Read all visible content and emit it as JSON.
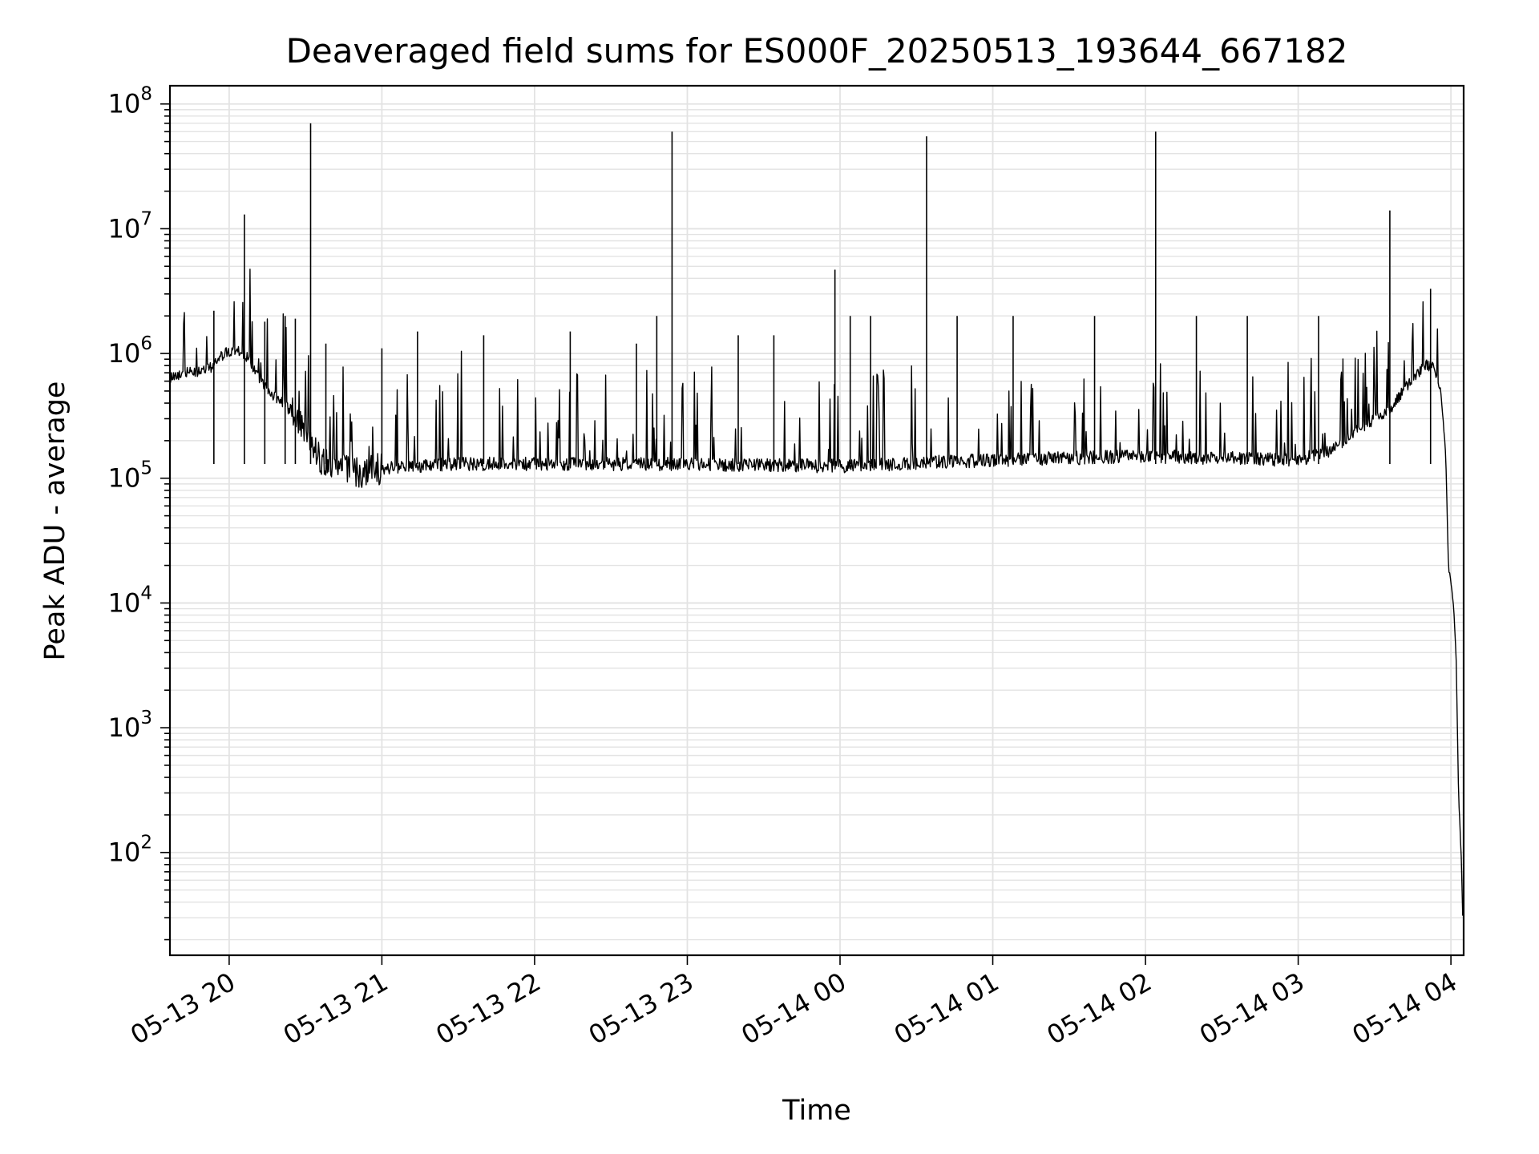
{
  "chart_data": {
    "type": "line",
    "title": "Deaveraged field sums for ES000F_20250513_193644_667182",
    "xlabel": "Time",
    "ylabel": "Peak ADU - average",
    "yscale": "log",
    "ylim": [
      15,
      140000000
    ],
    "xlim": [
      "2025-05-13 19:36:44",
      "2025-05-14 04:05:00"
    ],
    "x_ticks": [
      "05-13 20",
      "05-13 21",
      "05-13 22",
      "05-13 23",
      "05-14 00",
      "05-14 01",
      "05-14 02",
      "05-14 03",
      "05-14 04"
    ],
    "x_tick_times": [
      "2025-05-13 20:00",
      "2025-05-13 21:00",
      "2025-05-13 22:00",
      "2025-05-13 23:00",
      "2025-05-14 00:00",
      "2025-05-14 01:00",
      "2025-05-14 02:00",
      "2025-05-14 03:00",
      "2025-05-14 04:00"
    ],
    "y_ticks": [
      {
        "value": 100,
        "base": "10",
        "exp": "2"
      },
      {
        "value": 1000,
        "base": "10",
        "exp": "3"
      },
      {
        "value": 10000,
        "base": "10",
        "exp": "4"
      },
      {
        "value": 100000,
        "base": "10",
        "exp": "5"
      },
      {
        "value": 1000000,
        "base": "10",
        "exp": "6"
      },
      {
        "value": 10000000,
        "base": "10",
        "exp": "7"
      },
      {
        "value": 100000000,
        "base": "10",
        "exp": "8"
      }
    ],
    "grid": true,
    "line_color": "#000000",
    "series": [
      {
        "x": [
          "2025-05-13 19:36:44",
          "2025-05-13 19:42",
          "2025-05-13 19:48",
          "2025-05-13 19:54",
          "2025-05-13 19:58",
          "2025-05-13 20:03",
          "2025-05-13 20:07",
          "2025-05-13 20:12",
          "2025-05-13 20:18",
          "2025-05-13 20:24",
          "2025-05-13 20:30",
          "2025-05-13 20:36",
          "2025-05-13 20:42",
          "2025-05-13 20:50",
          "2025-05-13 21:00",
          "2025-05-13 21:30",
          "2025-05-13 22:00",
          "2025-05-13 23:00",
          "2025-05-14 00:00",
          "2025-05-14 01:00",
          "2025-05-14 02:00",
          "2025-05-14 03:00",
          "2025-05-14 03:12",
          "2025-05-14 03:24",
          "2025-05-14 03:36",
          "2025-05-14 03:44",
          "2025-05-14 03:50",
          "2025-05-14 03:53",
          "2025-05-14 03:56",
          "2025-05-14 03:58",
          "2025-05-14 03:59",
          "2025-05-14 04:01",
          "2025-05-14 04:02",
          "2025-05-14 04:03",
          "2025-05-14 04:04",
          "2025-05-14 04:04:40"
        ],
        "y": [
          650000,
          700000,
          700000,
          800000,
          1000000,
          1050000,
          950000,
          600000,
          450000,
          350000,
          250000,
          140000,
          120000,
          110000,
          120000,
          130000,
          130000,
          130000,
          125000,
          140000,
          150000,
          140000,
          160000,
          250000,
          350000,
          600000,
          800000,
          800000,
          500000,
          150000,
          20000,
          10000,
          4000,
          300,
          100,
          30
        ]
      }
    ],
    "spikes": [
      {
        "x": "2025-05-13 19:54",
        "y": 2200000
      },
      {
        "x": "2025-05-13 20:06",
        "y": 13000000
      },
      {
        "x": "2025-05-13 20:14",
        "y": 1800000
      },
      {
        "x": "2025-05-13 20:22",
        "y": 2000000
      },
      {
        "x": "2025-05-13 20:26",
        "y": 1900000
      },
      {
        "x": "2025-05-13 20:32",
        "y": 70000000
      },
      {
        "x": "2025-05-13 20:38",
        "y": 1200000
      },
      {
        "x": "2025-05-13 21:00",
        "y": 1100000
      },
      {
        "x": "2025-05-13 21:14",
        "y": 1500000
      },
      {
        "x": "2025-05-13 21:40",
        "y": 1400000
      },
      {
        "x": "2025-05-13 22:14",
        "y": 1500000
      },
      {
        "x": "2025-05-13 22:40",
        "y": 1200000
      },
      {
        "x": "2025-05-13 22:48",
        "y": 2000000
      },
      {
        "x": "2025-05-13 22:54",
        "y": 60000000
      },
      {
        "x": "2025-05-13 23:20",
        "y": 1400000
      },
      {
        "x": "2025-05-13 23:34",
        "y": 1400000
      },
      {
        "x": "2025-05-13 23:58",
        "y": 4700000
      },
      {
        "x": "2025-05-14 00:04",
        "y": 2000000
      },
      {
        "x": "2025-05-14 00:12",
        "y": 2000000
      },
      {
        "x": "2025-05-14 00:34",
        "y": 55000000
      },
      {
        "x": "2025-05-14 00:46",
        "y": 2000000
      },
      {
        "x": "2025-05-14 01:08",
        "y": 2000000
      },
      {
        "x": "2025-05-14 01:40",
        "y": 2000000
      },
      {
        "x": "2025-05-14 02:04",
        "y": 60000000
      },
      {
        "x": "2025-05-14 02:20",
        "y": 2000000
      },
      {
        "x": "2025-05-14 02:40",
        "y": 2000000
      },
      {
        "x": "2025-05-14 03:08",
        "y": 2000000
      },
      {
        "x": "2025-05-14 03:36",
        "y": 14000000
      },
      {
        "x": "2025-05-14 03:52",
        "y": 3300000
      }
    ]
  }
}
